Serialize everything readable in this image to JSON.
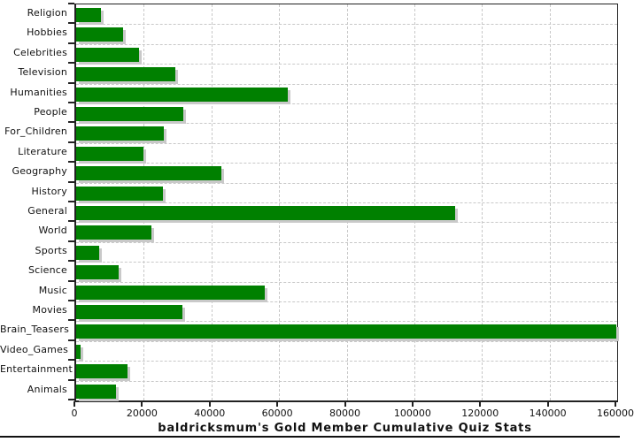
{
  "title": "baldricksmum's Gold Member Cumulative Quiz Stats",
  "colors": {
    "bar": "#008000",
    "bar_shadow": "#c9c9c9",
    "grid": "#c8c8c8",
    "axis": "#222222",
    "text": "#111111",
    "background": "#ffffff",
    "bottom_rule": "#111111"
  },
  "chart_data": {
    "type": "bar",
    "orientation": "horizontal",
    "title": "baldricksmum's Gold Member Cumulative Quiz Stats",
    "xlabel": "",
    "ylabel": "",
    "xlim": [
      0,
      160000
    ],
    "x_ticks": [
      0,
      20000,
      40000,
      60000,
      80000,
      100000,
      120000,
      140000,
      160000
    ],
    "grid": true,
    "legend_position": "none",
    "categories": [
      "Religion",
      "Hobbies",
      "Celebrities",
      "Television",
      "Humanities",
      "People",
      "For_Children",
      "Literature",
      "Geography",
      "History",
      "General",
      "World",
      "Sports",
      "Science",
      "Music",
      "Movies",
      "Brain_Teasers",
      "Video_Games",
      "Entertainment",
      "Animals"
    ],
    "values": [
      7300,
      14000,
      18700,
      29200,
      62600,
      31600,
      25800,
      19900,
      43000,
      25600,
      112000,
      22300,
      6700,
      12500,
      55700,
      31500,
      159700,
      1400,
      15300,
      11800
    ]
  }
}
